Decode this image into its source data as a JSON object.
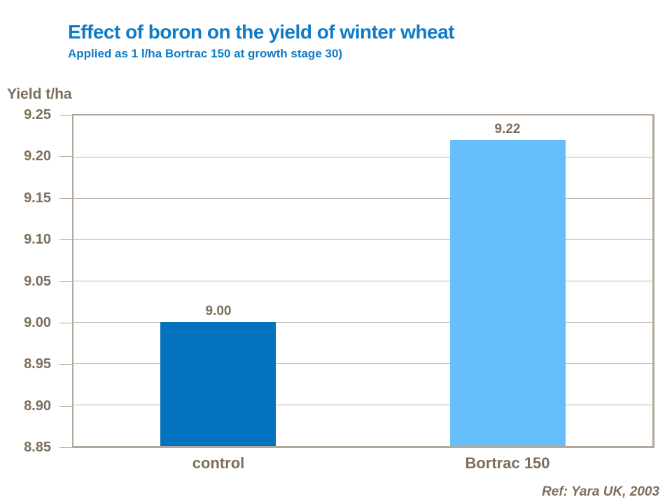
{
  "header": {
    "title": "Effect of boron on the yield of winter wheat",
    "subtitle": "Applied as 1 l/ha Bortrac 150 at growth stage 30)"
  },
  "footer": {
    "ref": "Ref: Yara UK, 2003"
  },
  "colors": {
    "title_blue": "#0e7bc7",
    "axis_text": "#7d6e5c",
    "grid_line": "#beb5a9",
    "plot_border": "#b2a89b",
    "bar_control": "#0272bf",
    "bar_bortrac": "#66befa",
    "background": "#ffffff"
  },
  "chart_data": {
    "type": "bar",
    "title": "Effect of boron on the yield of winter wheat",
    "subtitle": "Applied as 1 l/ha Bortrac 150 at growth stage 30)",
    "categories": [
      "control",
      "Bortrac 150"
    ],
    "values": [
      9.0,
      9.22
    ],
    "data_labels": [
      "9.00",
      "9.22"
    ],
    "bar_colors": [
      "#0272bf",
      "#66befa"
    ],
    "ylabel": "Yield t/ha",
    "xlabel": "",
    "ylim": [
      8.85,
      9.25
    ],
    "ytick_step": 0.05,
    "ytick_labels": [
      "9.25",
      "9.20",
      "9.15",
      "9.10",
      "9.05",
      "9.00",
      "8.95",
      "8.90",
      "8.85"
    ],
    "grid": true,
    "legend": false,
    "annotation": "Ref: Yara UK, 2003"
  }
}
